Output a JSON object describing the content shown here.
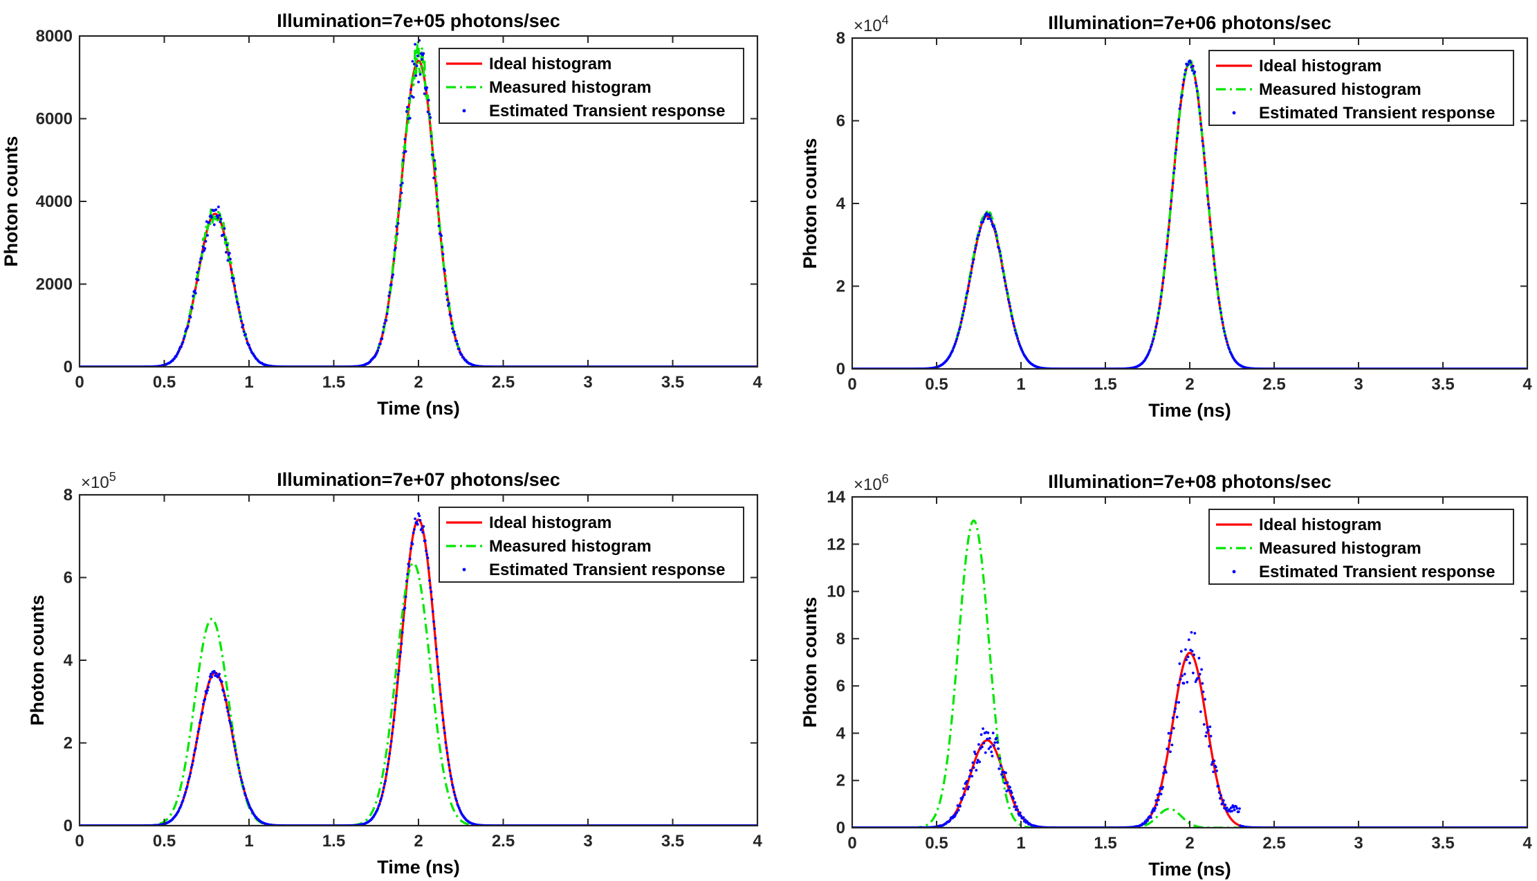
{
  "chart_data": [
    {
      "type": "line",
      "title": "Illumination=7e+05 photons/sec",
      "xlabel": "Time (ns)",
      "ylabel": "Photon counts",
      "xlim": [
        0,
        4
      ],
      "ylim": [
        0,
        8000
      ],
      "xticks": [
        0,
        0.5,
        1,
        1.5,
        2,
        2.5,
        3,
        3.5,
        4
      ],
      "xtick_labels": [
        "0",
        "0.5",
        "1",
        "1.5",
        "2",
        "2.5",
        "3",
        "3.5",
        "4"
      ],
      "yticks": [
        0,
        2000,
        4000,
        6000,
        8000
      ],
      "ytick_labels": [
        "0",
        "2000",
        "4000",
        "6000",
        "8000"
      ],
      "y_exponent": "",
      "legend": [
        "Ideal histogram",
        "Measured histogram",
        "Estimated Transient response"
      ],
      "series": [
        {
          "name": "Ideal histogram",
          "color": "#ff0000",
          "style": "solid",
          "peaks": [
            {
              "center": 0.8,
              "height": 3700,
              "sigma": 0.1
            },
            {
              "center": 2.0,
              "height": 7400,
              "sigma": 0.1
            }
          ],
          "noise": 0
        },
        {
          "name": "Measured histogram",
          "color": "#00e600",
          "style": "dashdot",
          "peaks": [
            {
              "center": 0.8,
              "height": 3750,
              "sigma": 0.1
            },
            {
              "center": 2.0,
              "height": 7500,
              "sigma": 0.1
            }
          ],
          "noise": 0.06
        },
        {
          "name": "Estimated Transient response",
          "color": "#0000ff",
          "style": "dots",
          "peaks": [
            {
              "center": 0.8,
              "height": 3700,
              "sigma": 0.1
            },
            {
              "center": 2.0,
              "height": 7400,
              "sigma": 0.1
            }
          ],
          "noise": 0.05
        }
      ]
    },
    {
      "type": "line",
      "title": "Illumination=7e+06 photons/sec",
      "xlabel": "Time (ns)",
      "ylabel": "Photon counts",
      "xlim": [
        0,
        4
      ],
      "ylim": [
        0,
        8
      ],
      "xticks": [
        0,
        0.5,
        1,
        1.5,
        2,
        2.5,
        3,
        3.5,
        4
      ],
      "xtick_labels": [
        "0",
        "0.5",
        "1",
        "1.5",
        "2",
        "2.5",
        "3",
        "3.5",
        "4"
      ],
      "yticks": [
        0,
        2,
        4,
        6,
        8
      ],
      "ytick_labels": [
        "0",
        "2",
        "4",
        "6",
        "8"
      ],
      "y_exponent": "×10",
      "y_exponent_power": "4",
      "legend": [
        "Ideal histogram",
        "Measured histogram",
        "Estimated Transient response"
      ],
      "series": [
        {
          "name": "Ideal histogram",
          "color": "#ff0000",
          "style": "solid",
          "peaks": [
            {
              "center": 0.8,
              "height": 3.7,
              "sigma": 0.1
            },
            {
              "center": 2.0,
              "height": 7.4,
              "sigma": 0.1
            }
          ],
          "noise": 0
        },
        {
          "name": "Measured histogram",
          "color": "#00e600",
          "style": "dashdot",
          "peaks": [
            {
              "center": 0.8,
              "height": 3.8,
              "sigma": 0.1
            },
            {
              "center": 2.0,
              "height": 7.45,
              "sigma": 0.1
            }
          ],
          "noise": 0.015
        },
        {
          "name": "Estimated Transient response",
          "color": "#0000ff",
          "style": "dots",
          "peaks": [
            {
              "center": 0.8,
              "height": 3.7,
              "sigma": 0.1
            },
            {
              "center": 2.0,
              "height": 7.4,
              "sigma": 0.1
            }
          ],
          "noise": 0.012
        }
      ]
    },
    {
      "type": "line",
      "title": "Illumination=7e+07 photons/sec",
      "xlabel": "Time (ns)",
      "ylabel": "Photon counts",
      "xlim": [
        0,
        4
      ],
      "ylim": [
        0,
        8
      ],
      "xticks": [
        0,
        0.5,
        1,
        1.5,
        2,
        2.5,
        3,
        3.5,
        4
      ],
      "xtick_labels": [
        "0",
        "0.5",
        "1",
        "1.5",
        "2",
        "2.5",
        "3",
        "3.5",
        "4"
      ],
      "yticks": [
        0,
        2,
        4,
        6,
        8
      ],
      "ytick_labels": [
        "0",
        "2",
        "4",
        "6",
        "8"
      ],
      "y_exponent": "×10",
      "y_exponent_power": "5",
      "legend": [
        "Ideal histogram",
        "Measured histogram",
        "Estimated Transient response"
      ],
      "series": [
        {
          "name": "Ideal histogram",
          "color": "#ff0000",
          "style": "solid",
          "peaks": [
            {
              "center": 0.8,
              "height": 3.7,
              "sigma": 0.1
            },
            {
              "center": 2.0,
              "height": 7.4,
              "sigma": 0.1
            }
          ],
          "noise": 0
        },
        {
          "name": "Measured histogram",
          "color": "#00e600",
          "style": "dashdot",
          "peaks": [
            {
              "center": 0.78,
              "height": 5.0,
              "sigma": 0.1
            },
            {
              "center": 1.97,
              "height": 6.35,
              "sigma": 0.1
            }
          ],
          "noise": 0
        },
        {
          "name": "Estimated Transient response",
          "color": "#0000ff",
          "style": "dots",
          "peaks": [
            {
              "center": 0.8,
              "height": 3.7,
              "sigma": 0.1
            },
            {
              "center": 2.0,
              "height": 7.4,
              "sigma": 0.1
            }
          ],
          "noise": 0.015
        }
      ]
    },
    {
      "type": "line",
      "title": "Illumination=7e+08 photons/sec",
      "xlabel": "Time (ns)",
      "ylabel": "Photon counts",
      "xlim": [
        0,
        4
      ],
      "ylim": [
        0,
        14
      ],
      "xticks": [
        0,
        0.5,
        1,
        1.5,
        2,
        2.5,
        3,
        3.5,
        4
      ],
      "xtick_labels": [
        "0",
        "0.5",
        "1",
        "1.5",
        "2",
        "2.5",
        "3",
        "3.5",
        "4"
      ],
      "yticks": [
        0,
        2,
        4,
        6,
        8,
        10,
        12,
        14
      ],
      "ytick_labels": [
        "0",
        "2",
        "4",
        "6",
        "8",
        "10",
        "12",
        "14"
      ],
      "y_exponent": "×10",
      "y_exponent_power": "6",
      "legend": [
        "Ideal histogram",
        "Measured histogram",
        "Estimated Transient response"
      ],
      "series": [
        {
          "name": "Ideal histogram",
          "color": "#ff0000",
          "style": "solid",
          "peaks": [
            {
              "center": 0.8,
              "height": 3.7,
              "sigma": 0.1
            },
            {
              "center": 2.0,
              "height": 7.4,
              "sigma": 0.1
            }
          ],
          "noise": 0
        },
        {
          "name": "Measured histogram",
          "color": "#00e600",
          "style": "dashdot",
          "peaks": [
            {
              "center": 0.72,
              "height": 13.0,
              "sigma": 0.09
            },
            {
              "center": 1.88,
              "height": 0.8,
              "sigma": 0.07
            }
          ],
          "noise": 0
        },
        {
          "name": "Estimated Transient response",
          "color": "#0000ff",
          "style": "dots",
          "peaks": [
            {
              "center": 0.8,
              "height": 3.7,
              "sigma": 0.1
            },
            {
              "center": 2.0,
              "height": 7.4,
              "sigma": 0.1
            }
          ],
          "noise": 0.12,
          "tail_from": 2.15,
          "tail_value": 0.8,
          "tail_to": 2.3
        }
      ]
    }
  ]
}
